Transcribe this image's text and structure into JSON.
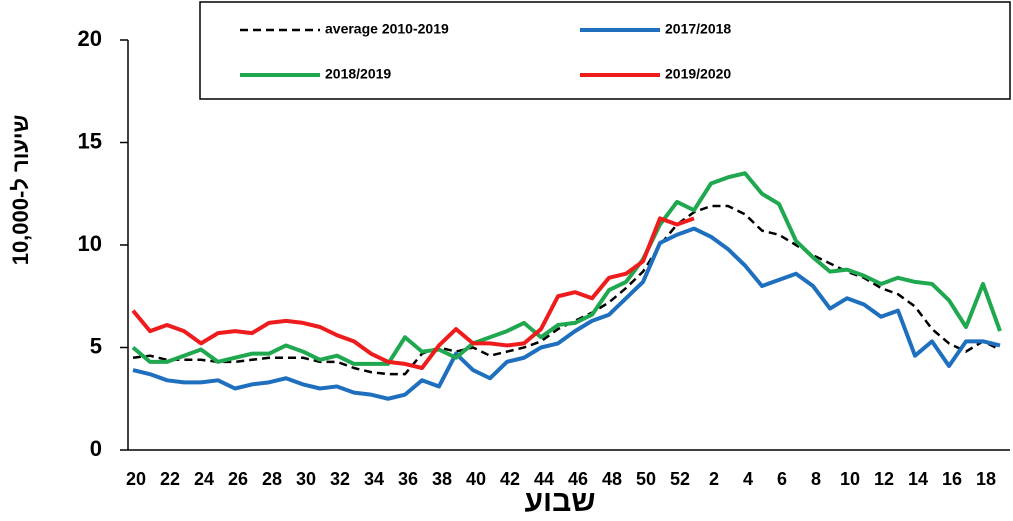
{
  "chart_data": {
    "type": "line",
    "y_label": "שיעור ל-10,000",
    "x_label": "שבוע",
    "categories": [
      "20",
      null,
      "22",
      null,
      "24",
      null,
      "26",
      null,
      "28",
      null,
      "30",
      null,
      "32",
      null,
      "34",
      null,
      "36",
      null,
      "38",
      null,
      "40",
      null,
      "42",
      null,
      "44",
      null,
      "46",
      null,
      "48",
      null,
      "50",
      null,
      "52",
      null,
      "2",
      null,
      "4",
      null,
      "6",
      null,
      "8",
      null,
      "10",
      null,
      "12",
      null,
      "14",
      null,
      "16",
      null,
      "18",
      null
    ],
    "ylim": [
      0,
      20
    ],
    "yticks": [
      0,
      5,
      10,
      15,
      20
    ],
    "series": [
      {
        "name": "average 2010-2019",
        "color": "#000000",
        "style": "dashed",
        "values": [
          4.5,
          4.6,
          4.4,
          4.4,
          4.4,
          4.3,
          4.3,
          4.4,
          4.5,
          4.5,
          4.5,
          4.3,
          4.3,
          4.0,
          3.8,
          3.7,
          3.7,
          4.7,
          5.0,
          4.8,
          5.0,
          4.6,
          4.8,
          5.0,
          5.3,
          5.9,
          6.3,
          6.7,
          7.2,
          7.9,
          8.7,
          10.0,
          11.0,
          11.6,
          11.9,
          11.9,
          11.5,
          10.7,
          10.5,
          10.0,
          9.5,
          9.1,
          8.7,
          8.4,
          7.9,
          7.6,
          7.0,
          5.9,
          5.2,
          4.8,
          5.3,
          4.9
        ]
      },
      {
        "name": "2017/2018",
        "color": "#1f6fbf",
        "style": "solid",
        "values": [
          3.9,
          3.7,
          3.4,
          3.3,
          3.3,
          3.4,
          3.0,
          3.2,
          3.3,
          3.5,
          3.2,
          3.0,
          3.1,
          2.8,
          2.7,
          2.5,
          2.7,
          3.4,
          3.1,
          4.7,
          3.9,
          3.5,
          4.3,
          4.5,
          5.0,
          5.2,
          5.8,
          6.3,
          6.6,
          7.4,
          8.2,
          10.1,
          10.5,
          10.8,
          10.4,
          9.8,
          9.0,
          8.0,
          8.3,
          8.6,
          8.0,
          6.9,
          7.4,
          7.1,
          6.5,
          6.8,
          4.6,
          5.3,
          4.1,
          5.3,
          5.3,
          5.1
        ]
      },
      {
        "name": "2018/2019",
        "color": "#1fa84f",
        "style": "solid",
        "values": [
          5.0,
          4.3,
          4.3,
          4.6,
          4.9,
          4.3,
          4.5,
          4.7,
          4.7,
          5.1,
          4.8,
          4.4,
          4.6,
          4.2,
          4.2,
          4.2,
          5.5,
          4.8,
          4.9,
          4.5,
          5.2,
          5.5,
          5.8,
          6.2,
          5.5,
          6.1,
          6.2,
          6.6,
          7.8,
          8.2,
          9.3,
          11.0,
          12.1,
          11.7,
          13.0,
          13.3,
          13.5,
          12.5,
          12.0,
          10.2,
          9.4,
          8.7,
          8.8,
          8.5,
          8.1,
          8.4,
          8.2,
          8.1,
          7.3,
          6.0,
          8.1,
          5.8
        ]
      },
      {
        "name": "2019/2020",
        "color": "#ee1c1c",
        "style": "solid",
        "values": [
          6.8,
          5.8,
          6.1,
          5.8,
          5.2,
          5.7,
          5.8,
          5.7,
          6.2,
          6.3,
          6.2,
          6.0,
          5.6,
          5.3,
          4.7,
          4.3,
          4.2,
          4.0,
          5.1,
          5.9,
          5.2,
          5.2,
          5.1,
          5.2,
          5.9,
          7.5,
          7.7,
          7.4,
          8.4,
          8.6,
          9.2,
          11.3,
          11.0,
          11.3,
          null,
          null,
          null,
          null,
          null,
          null,
          null,
          null,
          null,
          null,
          null,
          null,
          null,
          null,
          null,
          null,
          null,
          null
        ]
      }
    ]
  }
}
